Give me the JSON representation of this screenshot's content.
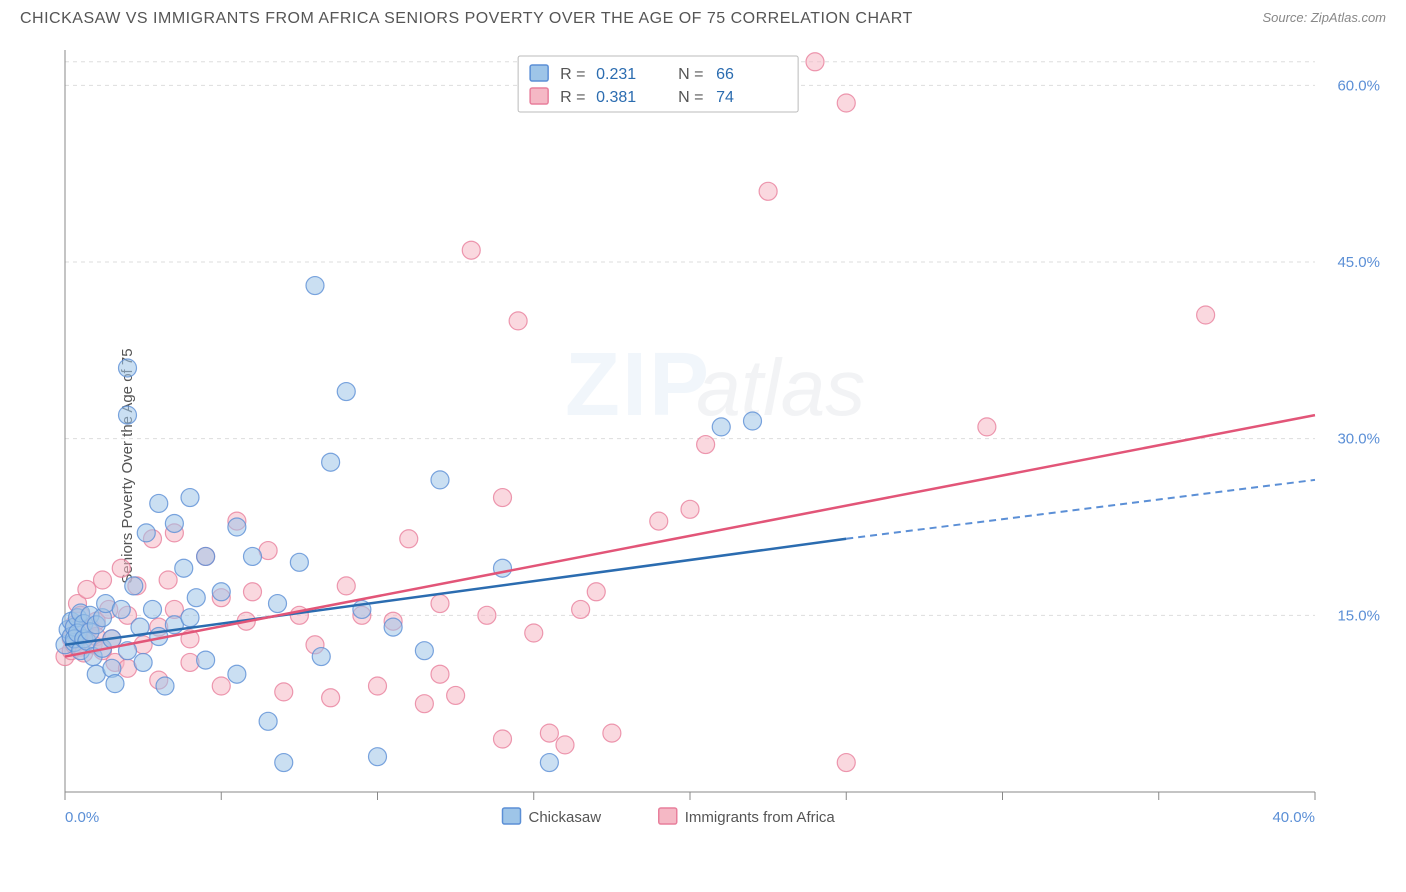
{
  "title": "CHICKASAW VS IMMIGRANTS FROM AFRICA SENIORS POVERTY OVER THE AGE OF 75 CORRELATION CHART",
  "source": "Source: ZipAtlas.com",
  "ylabel": "Seniors Poverty Over the Age of 75",
  "watermark": {
    "part1": "ZIP",
    "part2": "atlas"
  },
  "chart": {
    "type": "scatter",
    "xlim": [
      0,
      40
    ],
    "ylim": [
      0,
      63
    ],
    "xticks": [
      0,
      5,
      10,
      15,
      20,
      25,
      30,
      35,
      40
    ],
    "xlabels_shown": {
      "0": "0.0%",
      "40": "40.0%"
    },
    "yticks": [
      15,
      30,
      45,
      60
    ],
    "ylabels": {
      "15": "15.0%",
      "30": "30.0%",
      "45": "45.0%",
      "60": "60.0%"
    },
    "background_color": "#ffffff",
    "grid_color": "#dddddd",
    "marker_radius": 9,
    "series": [
      {
        "name": "Chickasaw",
        "swatch": "blue",
        "fill": "#9ec5e8",
        "stroke": "#5b8fd6",
        "r": "0.231",
        "n": "66",
        "reg_solid": {
          "x1": 0,
          "y1": 12.5,
          "x2": 25,
          "y2": 21.5
        },
        "reg_dash": {
          "x1": 25,
          "y1": 21.5,
          "x2": 40,
          "y2": 26.5
        },
        "points": [
          [
            0.0,
            12.5
          ],
          [
            0.1,
            13.8
          ],
          [
            0.2,
            14.5
          ],
          [
            0.2,
            13.2
          ],
          [
            0.3,
            12.7
          ],
          [
            0.3,
            14.0
          ],
          [
            0.3,
            13.0
          ],
          [
            0.4,
            14.8
          ],
          [
            0.4,
            13.5
          ],
          [
            0.5,
            12.0
          ],
          [
            0.5,
            15.2
          ],
          [
            0.6,
            13.0
          ],
          [
            0.6,
            14.3
          ],
          [
            0.7,
            12.8
          ],
          [
            0.8,
            15.0
          ],
          [
            0.8,
            13.6
          ],
          [
            0.9,
            11.5
          ],
          [
            1.0,
            14.2
          ],
          [
            1.0,
            10.0
          ],
          [
            1.2,
            14.8
          ],
          [
            1.2,
            12.2
          ],
          [
            1.3,
            16.0
          ],
          [
            1.5,
            10.5
          ],
          [
            1.5,
            13.0
          ],
          [
            1.6,
            9.2
          ],
          [
            1.8,
            15.5
          ],
          [
            2.0,
            12.0
          ],
          [
            2.0,
            36.0
          ],
          [
            2.0,
            32.0
          ],
          [
            2.2,
            17.5
          ],
          [
            2.4,
            14.0
          ],
          [
            2.5,
            11.0
          ],
          [
            2.6,
            22.0
          ],
          [
            2.8,
            15.5
          ],
          [
            3.0,
            24.5
          ],
          [
            3.0,
            13.2
          ],
          [
            3.2,
            9.0
          ],
          [
            3.5,
            22.8
          ],
          [
            3.5,
            14.2
          ],
          [
            3.8,
            19.0
          ],
          [
            4.0,
            25.0
          ],
          [
            4.0,
            14.8
          ],
          [
            4.2,
            16.5
          ],
          [
            4.5,
            20.0
          ],
          [
            4.5,
            11.2
          ],
          [
            5.0,
            17.0
          ],
          [
            5.5,
            22.5
          ],
          [
            5.5,
            10.0
          ],
          [
            6.0,
            20.0
          ],
          [
            6.5,
            6.0
          ],
          [
            6.8,
            16.0
          ],
          [
            7.0,
            2.5
          ],
          [
            7.5,
            19.5
          ],
          [
            8.0,
            43.0
          ],
          [
            8.2,
            11.5
          ],
          [
            8.5,
            28.0
          ],
          [
            9.0,
            34.0
          ],
          [
            9.5,
            15.5
          ],
          [
            10.0,
            3.0
          ],
          [
            10.5,
            14.0
          ],
          [
            11.5,
            12.0
          ],
          [
            12.0,
            26.5
          ],
          [
            14.0,
            19.0
          ],
          [
            15.5,
            2.5
          ],
          [
            21.0,
            31.0
          ],
          [
            22.0,
            31.5
          ]
        ]
      },
      {
        "name": "Immigrants from Africa",
        "swatch": "pink",
        "fill": "#f5b8c5",
        "stroke": "#e87f9c",
        "r": "0.381",
        "n": "74",
        "reg_solid": {
          "x1": 0,
          "y1": 11.5,
          "x2": 40,
          "y2": 32.0
        },
        "points": [
          [
            0.0,
            11.5
          ],
          [
            0.2,
            13.0
          ],
          [
            0.2,
            12.0
          ],
          [
            0.3,
            14.2
          ],
          [
            0.3,
            12.5
          ],
          [
            0.4,
            16.0
          ],
          [
            0.4,
            13.0
          ],
          [
            0.5,
            12.3
          ],
          [
            0.5,
            15.0
          ],
          [
            0.6,
            13.5
          ],
          [
            0.6,
            11.8
          ],
          [
            0.7,
            17.2
          ],
          [
            0.8,
            14.0
          ],
          [
            0.9,
            12.5
          ],
          [
            1.0,
            14.5
          ],
          [
            1.0,
            13.2
          ],
          [
            1.2,
            18.0
          ],
          [
            1.2,
            12.0
          ],
          [
            1.4,
            15.5
          ],
          [
            1.5,
            13.0
          ],
          [
            1.6,
            11.0
          ],
          [
            1.8,
            19.0
          ],
          [
            2.0,
            15.0
          ],
          [
            2.0,
            10.5
          ],
          [
            2.3,
            17.5
          ],
          [
            2.5,
            12.5
          ],
          [
            2.8,
            21.5
          ],
          [
            3.0,
            14.0
          ],
          [
            3.0,
            9.5
          ],
          [
            3.3,
            18.0
          ],
          [
            3.5,
            22.0
          ],
          [
            3.5,
            15.5
          ],
          [
            4.0,
            13.0
          ],
          [
            4.0,
            11.0
          ],
          [
            4.5,
            20.0
          ],
          [
            5.0,
            16.5
          ],
          [
            5.0,
            9.0
          ],
          [
            5.5,
            23.0
          ],
          [
            5.8,
            14.5
          ],
          [
            6.0,
            17.0
          ],
          [
            6.5,
            20.5
          ],
          [
            7.0,
            8.5
          ],
          [
            7.5,
            15.0
          ],
          [
            8.0,
            12.5
          ],
          [
            8.5,
            8.0
          ],
          [
            9.0,
            17.5
          ],
          [
            9.5,
            15.0
          ],
          [
            10.0,
            9.0
          ],
          [
            10.5,
            14.5
          ],
          [
            11.0,
            21.5
          ],
          [
            11.5,
            7.5
          ],
          [
            12.0,
            16.0
          ],
          [
            12.0,
            10.0
          ],
          [
            12.5,
            8.2
          ],
          [
            13.0,
            46.0
          ],
          [
            13.5,
            15.0
          ],
          [
            14.0,
            25.0
          ],
          [
            14.0,
            4.5
          ],
          [
            14.5,
            40.0
          ],
          [
            15.0,
            13.5
          ],
          [
            15.5,
            5.0
          ],
          [
            16.0,
            4.0
          ],
          [
            16.5,
            15.5
          ],
          [
            17.0,
            17.0
          ],
          [
            17.5,
            5.0
          ],
          [
            19.0,
            23.0
          ],
          [
            20.0,
            24.0
          ],
          [
            20.5,
            29.5
          ],
          [
            22.5,
            51.0
          ],
          [
            24.0,
            62.0
          ],
          [
            25.0,
            58.5
          ],
          [
            25.0,
            2.5
          ],
          [
            29.5,
            31.0
          ],
          [
            36.5,
            40.5
          ]
        ]
      }
    ]
  },
  "stat_box": {
    "r_label": "R =",
    "n_label": "N ="
  },
  "legend_bottom": [
    {
      "swatch": "blue",
      "label": "Chickasaw"
    },
    {
      "swatch": "pink",
      "label": "Immigrants from Africa"
    }
  ]
}
